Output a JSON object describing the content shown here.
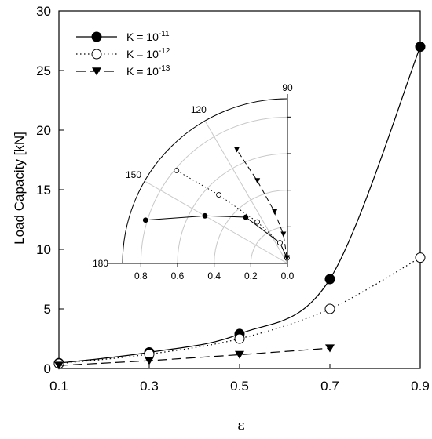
{
  "chart_data": {
    "type": "line",
    "title": "",
    "xlabel": "ε",
    "ylabel": "Load Capacity [kN]",
    "xlim": [
      0.1,
      0.9
    ],
    "ylim": [
      0,
      30
    ],
    "xticks": [
      "0.1",
      "0.3",
      "0.5",
      "0.7",
      "0.9"
    ],
    "yticks": [
      "0",
      "5",
      "10",
      "15",
      "20",
      "25",
      "30"
    ],
    "grid": false,
    "legend_position": "top-left",
    "series": [
      {
        "name": "K = 10",
        "exponent": "-11",
        "style": "solid",
        "marker": "filled-circle",
        "color": "#000000",
        "x": [
          0.1,
          0.3,
          0.5,
          0.7,
          0.9
        ],
        "values": [
          0.45,
          1.35,
          2.9,
          7.5,
          27.0
        ]
      },
      {
        "name": "K = 10",
        "exponent": "-12",
        "style": "dotted",
        "marker": "open-circle",
        "color": "#000000",
        "x": [
          0.1,
          0.3,
          0.5,
          0.7,
          0.9
        ],
        "values": [
          0.4,
          1.2,
          2.5,
          5.0,
          9.3
        ]
      },
      {
        "name": "K = 10",
        "exponent": "-13",
        "style": "dashed",
        "marker": "filled-triangle-down",
        "color": "#000000",
        "x": [
          0.1,
          0.3,
          0.5,
          0.7
        ],
        "values": [
          0.25,
          0.65,
          1.15,
          1.7
        ]
      }
    ],
    "inset": {
      "type": "polar",
      "angle_range_deg": [
        90,
        180
      ],
      "angle_labels": [
        "90",
        "120",
        "150",
        "180"
      ],
      "radial_labels": [
        "0.8",
        "0.6",
        "0.4",
        "0.2",
        "0.0"
      ],
      "radial_max": 0.9,
      "series": [
        {
          "name": "K = 10^-11",
          "points": [
            [
              95,
              0.03
            ],
            [
              110,
              0.12
            ],
            [
              132,
              0.34
            ],
            [
              150,
              0.52
            ],
            [
              163,
              0.81
            ]
          ]
        },
        {
          "name": "K = 10^-12",
          "points": [
            [
              95,
              0.03
            ],
            [
              110,
              0.12
            ],
            [
              126,
              0.28
            ],
            [
              135,
              0.53
            ],
            [
              140,
              0.79
            ]
          ]
        },
        {
          "name": "K = 10^-13",
          "points": [
            [
              95,
              0.03
            ],
            [
              98,
              0.16
            ],
            [
              104,
              0.29
            ],
            [
              110,
              0.48
            ],
            [
              114,
              0.68
            ]
          ]
        }
      ]
    }
  }
}
